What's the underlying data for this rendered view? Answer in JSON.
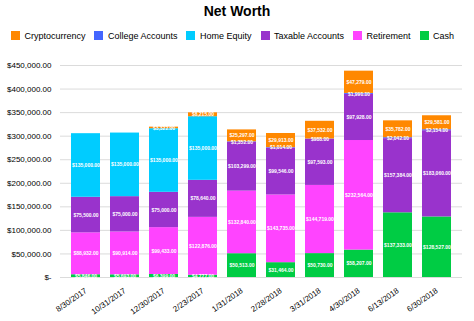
{
  "chart_data": {
    "type": "bar",
    "stacked": true,
    "title": "Net Worth",
    "categories": [
      "8/30/2017",
      "10/31/2017",
      "12/30/2017",
      "2/23/2017",
      "1/31/2018",
      "2/28/2018",
      "3/31/2018",
      "4/30/2018",
      "6/13/2018",
      "6/30/2018"
    ],
    "series": [
      {
        "name": "Cash",
        "color": "#00cc44",
        "values": [
          5846.0,
          5693.0,
          6399.0,
          4777.0,
          50513.0,
          31464.0,
          50730.0,
          58207.0,
          137333.0,
          128527.0
        ],
        "value_labels": [
          "$5,846.00",
          "$5,693.00",
          "$6,399.00",
          "$4,777.00",
          "$50,513.00",
          "$31,464.00",
          "$50,730.00",
          "$58,207.00",
          "$137,333.00",
          "$128,527.00"
        ]
      },
      {
        "name": "Retirement",
        "color": "#ff44ff",
        "values": [
          88932.0,
          90914.0,
          99433.0,
          122876.0,
          132840.0,
          143735.0,
          144719.0,
          232564.0,
          0,
          0
        ],
        "value_labels": [
          "$88,932.00",
          "$90,914.00",
          "$99,433.00",
          "$122,876.00",
          "$132,840.00",
          "$143,735.00",
          "$144,719.00",
          "$232,564.00",
          null,
          null
        ]
      },
      {
        "name": "Taxable Accounts",
        "color": "#9933cc",
        "values": [
          75500.0,
          75000.0,
          75000.0,
          78640.0,
          103299.0,
          99546.0,
          97593.0,
          97928.0,
          157384.0,
          183060.0
        ],
        "value_labels": [
          "$75,500.00",
          "$75,000.00",
          "$75,000.00",
          "$78,640.00",
          "$103,299.00",
          "$99,546.00",
          "$97,593.00",
          "$97,928.00",
          "$157,384.00",
          "$183,060.00"
        ]
      },
      {
        "name": "Home Equity",
        "color": "#00ccff",
        "values": [
          135000.0,
          135000.0,
          135000.0,
          135000.0,
          0,
          0,
          0,
          0,
          0,
          0
        ],
        "value_labels": [
          "$135,000.00",
          "$135,000.00",
          "$135,000.00",
          "$135,000.00",
          null,
          null,
          null,
          null,
          null,
          null
        ]
      },
      {
        "name": "College Accounts",
        "color": "#4466ff",
        "values": [
          0,
          0,
          0,
          0,
          1352.0,
          1014.0,
          988.0,
          1990.0,
          2042.0,
          2154.0
        ],
        "value_labels": [
          null,
          null,
          null,
          null,
          "$1,352.00",
          "$1,014.00",
          "$988.00",
          "$1,990.00",
          "$2,042.00",
          "$2,154.00"
        ]
      },
      {
        "name": "Cryptocurrency",
        "color": "#ff8800",
        "values": [
          0,
          0,
          3322.0,
          8215.0,
          25297.0,
          29913.0,
          37532.0,
          47279.0,
          35782.0,
          29581.0
        ],
        "value_labels": [
          null,
          null,
          "$3,322.00",
          "$8,215.00",
          "$25,297.00",
          "$29,913.00",
          "$37,532.00",
          "$47,279.00",
          "$35,782.00",
          "$29,581.00"
        ]
      }
    ],
    "ylim": [
      0,
      450000
    ],
    "yticks": [
      {
        "value": 0,
        "label": "$-"
      },
      {
        "value": 50000,
        "label": "$50,000.00"
      },
      {
        "value": 100000,
        "label": "$100,000.00"
      },
      {
        "value": 150000,
        "label": "$150,000.00"
      },
      {
        "value": 200000,
        "label": "$200,000.00"
      },
      {
        "value": 250000,
        "label": "$250,000.00"
      },
      {
        "value": 300000,
        "label": "$300,000.00"
      },
      {
        "value": 350000,
        "label": "$350,000.00"
      },
      {
        "value": 400000,
        "label": "$400,000.00"
      },
      {
        "value": 450000,
        "label": "$450,000.00"
      }
    ],
    "grid": true,
    "legend": "top",
    "data_labels": true
  }
}
